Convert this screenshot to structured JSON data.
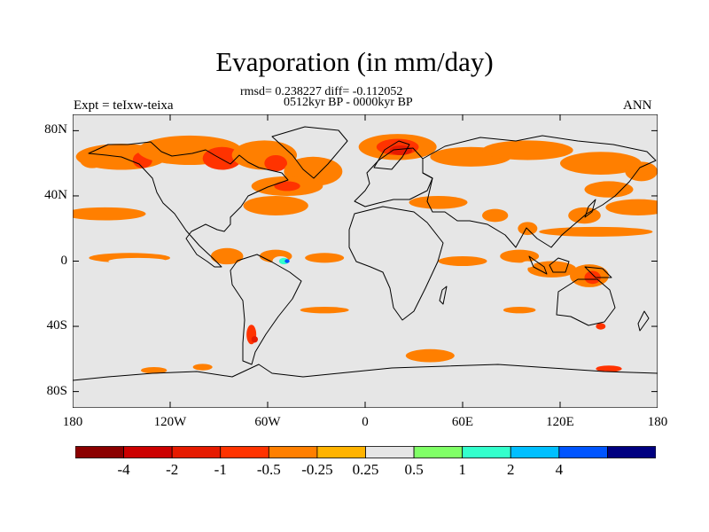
{
  "header": {
    "title": "Evaporation (in mm/day)",
    "stats": "rmsd= 0.238227 diff= -0.112052",
    "period": "0512kyr BP - 0000kyr BP",
    "experiment": "Expt = teIxw-teixa",
    "season": "ANN"
  },
  "map": {
    "projection": "cylindrical equidistant",
    "lon_range": [
      -180,
      180
    ],
    "lat_range": [
      -90,
      90
    ],
    "background_color": "#e6e6e6",
    "y_ticks": [
      {
        "lat": 80,
        "label": "80N"
      },
      {
        "lat": 40,
        "label": "40N"
      },
      {
        "lat": 0,
        "label": "0"
      },
      {
        "lat": -40,
        "label": "40S"
      },
      {
        "lat": -80,
        "label": "80S"
      }
    ],
    "x_ticks": [
      {
        "lon": -180,
        "label": "180"
      },
      {
        "lon": -120,
        "label": "120W"
      },
      {
        "lon": -60,
        "label": "60W"
      },
      {
        "lon": 0,
        "label": "0"
      },
      {
        "lon": 60,
        "label": "60E"
      },
      {
        "lon": 120,
        "label": "120E"
      },
      {
        "lon": 180,
        "label": "180"
      }
    ]
  },
  "colorbar": {
    "colors": [
      "#8b0000",
      "#cc0000",
      "#e61a00",
      "#ff3300",
      "#ff7f00",
      "#ffb300",
      "#e6e6e6",
      "#80ff66",
      "#33ffcc",
      "#00bfff",
      "#0055ff",
      "#000080"
    ],
    "labels": [
      "-4",
      "-2",
      "-1",
      "-0.5",
      "-0.25",
      "0.25",
      "0.5",
      "1",
      "2",
      "4"
    ]
  },
  "anomaly_regions": [
    {
      "lon": -150,
      "lat": 64,
      "rlon": 28,
      "rlat": 8,
      "level": -0.5
    },
    {
      "lon": -137,
      "lat": 62,
      "rlon": 6,
      "rlat": 5,
      "level": -1
    },
    {
      "lon": -168,
      "lat": 63,
      "rlon": 8,
      "rlat": 6,
      "level": -0.5
    },
    {
      "lon": -108,
      "lat": 68,
      "rlon": 32,
      "rlat": 9,
      "level": -0.5
    },
    {
      "lon": -88,
      "lat": 63,
      "rlon": 12,
      "rlat": 7,
      "level": -1
    },
    {
      "lon": -62,
      "lat": 65,
      "rlon": 20,
      "rlat": 9,
      "level": -0.5
    },
    {
      "lon": -55,
      "lat": 60,
      "rlon": 7,
      "rlat": 5,
      "level": -1
    },
    {
      "lon": -32,
      "lat": 55,
      "rlon": 18,
      "rlat": 9,
      "level": -0.5
    },
    {
      "lon": -48,
      "lat": 46,
      "rlon": 22,
      "rlat": 6,
      "level": -0.5
    },
    {
      "lon": -48,
      "lat": 46,
      "rlon": 8,
      "rlat": 3,
      "level": -1
    },
    {
      "lon": -55,
      "lat": 34,
      "rlon": 20,
      "rlat": 6,
      "level": -0.5
    },
    {
      "lon": 20,
      "lat": 70,
      "rlon": 24,
      "rlat": 8,
      "level": -0.5
    },
    {
      "lon": 20,
      "lat": 70,
      "rlon": 13,
      "rlat": 5,
      "level": -1
    },
    {
      "lon": 22,
      "lat": 68,
      "rlon": 7,
      "rlat": 3,
      "level": -2
    },
    {
      "lon": 65,
      "lat": 64,
      "rlon": 25,
      "rlat": 6,
      "level": -0.5
    },
    {
      "lon": 100,
      "lat": 68,
      "rlon": 28,
      "rlat": 6,
      "level": -0.5
    },
    {
      "lon": 145,
      "lat": 60,
      "rlon": 25,
      "rlat": 7,
      "level": -0.5
    },
    {
      "lon": 170,
      "lat": 55,
      "rlon": 10,
      "rlat": 6,
      "level": -0.5
    },
    {
      "lon": -160,
      "lat": 29,
      "rlon": 25,
      "rlat": 4,
      "level": -0.5
    },
    {
      "lon": 168,
      "lat": 33,
      "rlon": 20,
      "rlat": 5,
      "level": -0.5
    },
    {
      "lon": 150,
      "lat": 44,
      "rlon": 15,
      "rlat": 5,
      "level": -0.5
    },
    {
      "lon": 135,
      "lat": 28,
      "rlon": 10,
      "rlat": 5,
      "level": -0.5
    },
    {
      "lon": 142,
      "lat": 18,
      "rlon": 35,
      "rlat": 3,
      "level": -0.5
    },
    {
      "lon": 45,
      "lat": 36,
      "rlon": 18,
      "rlat": 4,
      "level": -0.5
    },
    {
      "lon": 80,
      "lat": 28,
      "rlon": 8,
      "rlat": 4,
      "level": -0.5
    },
    {
      "lon": 100,
      "lat": 20,
      "rlon": 6,
      "rlat": 4,
      "level": -0.5
    },
    {
      "lon": -145,
      "lat": 2,
      "rlon": 25,
      "rlat": 3,
      "level": -0.5
    },
    {
      "lon": -85,
      "lat": 3,
      "rlon": 10,
      "rlat": 5,
      "level": -0.5
    },
    {
      "lon": -55,
      "lat": 3,
      "rlon": 10,
      "rlat": 4,
      "level": -0.5
    },
    {
      "lon": -25,
      "lat": 2,
      "rlon": 12,
      "rlat": 3,
      "level": -0.5
    },
    {
      "lon": 60,
      "lat": 0,
      "rlon": 15,
      "rlat": 3,
      "level": -0.5
    },
    {
      "lon": 95,
      "lat": 3,
      "rlon": 12,
      "rlat": 4,
      "level": -0.5
    },
    {
      "lon": 115,
      "lat": -5,
      "rlon": 15,
      "rlat": 5,
      "level": -0.5
    },
    {
      "lon": 138,
      "lat": -9,
      "rlon": 12,
      "rlat": 7,
      "level": -0.5
    },
    {
      "lon": 140,
      "lat": -10,
      "rlon": 5,
      "rlat": 4,
      "level": -1
    },
    {
      "lon": 95,
      "lat": -30,
      "rlon": 10,
      "rlat": 2,
      "level": -0.5
    },
    {
      "lon": 145,
      "lat": -40,
      "rlon": 3,
      "rlat": 2,
      "level": -1
    },
    {
      "lon": -70,
      "lat": -45,
      "rlon": 3,
      "rlat": 6,
      "level": -1
    },
    {
      "lon": -68,
      "lat": -48,
      "rlon": 2,
      "rlat": 2,
      "level": -2
    },
    {
      "lon": -25,
      "lat": -30,
      "rlon": 15,
      "rlat": 2,
      "level": -0.5
    },
    {
      "lon": 40,
      "lat": -58,
      "rlon": 15,
      "rlat": 4,
      "level": -0.5
    },
    {
      "lon": 150,
      "lat": -66,
      "rlon": 8,
      "rlat": 2,
      "level": -1
    },
    {
      "lon": -130,
      "lat": -67,
      "rlon": 8,
      "rlat": 2,
      "level": -0.5
    },
    {
      "lon": -100,
      "lat": -65,
      "rlon": 6,
      "rlat": 2,
      "level": -0.5
    },
    {
      "lon": -140,
      "lat": 0,
      "rlon": 18,
      "rlat": 2,
      "level": 0.25
    },
    {
      "lon": -52,
      "lat": 0,
      "rlon": 5,
      "rlat": 3,
      "level": 0.25
    },
    {
      "lon": -50,
      "lat": 0,
      "rlon": 3,
      "rlat": 2,
      "level": 1
    },
    {
      "lon": -48,
      "lat": 0,
      "rlon": 1.5,
      "rlat": 1.2,
      "level": 4
    },
    {
      "lon": -20,
      "lat": -25,
      "rlon": 5,
      "rlat": 2,
      "level": 0.25
    },
    {
      "lon": 40,
      "lat": 20,
      "rlon": 4,
      "rlat": 2,
      "level": 0.25
    },
    {
      "lon": 100,
      "lat": -2,
      "rlon": 4,
      "rlat": 2,
      "level": 0.25
    },
    {
      "lon": -60,
      "lat": -70,
      "rlon": 5,
      "rlat": 2,
      "level": 0.25
    }
  ]
}
